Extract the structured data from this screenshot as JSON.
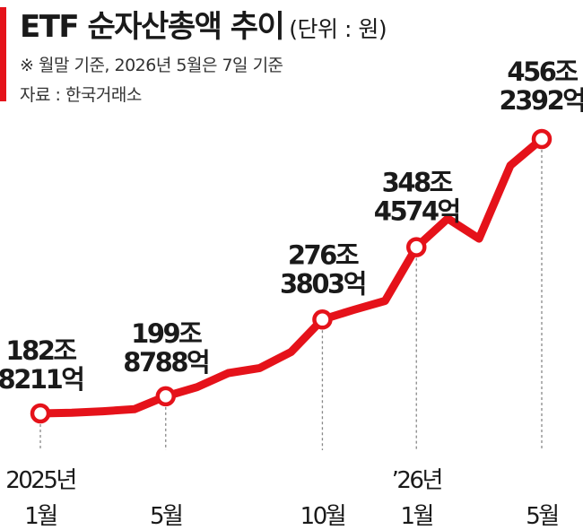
{
  "header": {
    "title": "ETF 순자산총액 추이",
    "unit": "(단위 : 원)",
    "note": "※  월말 기준, 2026년 5월은 7일 기준",
    "source": "자료 : 한국거래소"
  },
  "colors": {
    "accent": "#e5121a",
    "line": "#e5121a",
    "guide": "#888888",
    "text": "#1a1a1a"
  },
  "chart_data": {
    "type": "line",
    "title": "ETF 순자산총액 추이",
    "unit": "(단위 : 원)",
    "x": [
      "2025-01",
      "2025-02",
      "2025-03",
      "2025-04",
      "2025-05",
      "2025-06",
      "2025-07",
      "2025-08",
      "2025-09",
      "2025-10",
      "2025-11",
      "2025-12",
      "2026-01",
      "2026-02",
      "2026-03",
      "2026-04",
      "2026-05"
    ],
    "values": [
      182.82,
      183.5,
      185,
      187,
      199.88,
      209,
      223,
      228,
      244,
      276.38,
      286,
      295,
      348.46,
      377,
      357,
      430,
      456.24
    ],
    "x_tick_labels": [
      {
        "index": 0,
        "lines": [
          "2025년",
          "1월"
        ]
      },
      {
        "index": 4,
        "lines": [
          "",
          "5월"
        ]
      },
      {
        "index": 9,
        "lines": [
          "",
          "10월"
        ]
      },
      {
        "index": 12,
        "lines": [
          "’26년",
          "1월"
        ]
      },
      {
        "index": 16,
        "lines": [
          "",
          "5월"
        ]
      }
    ],
    "annotations": [
      {
        "index": 0,
        "lines": [
          "182조",
          "8211억"
        ]
      },
      {
        "index": 4,
        "lines": [
          "199조",
          "8788억"
        ]
      },
      {
        "index": 9,
        "lines": [
          "276조",
          "3803억"
        ]
      },
      {
        "index": 12,
        "lines": [
          "348조",
          "4574억"
        ]
      },
      {
        "index": 16,
        "lines": [
          "456조",
          "2392억"
        ]
      }
    ],
    "grid": false
  }
}
